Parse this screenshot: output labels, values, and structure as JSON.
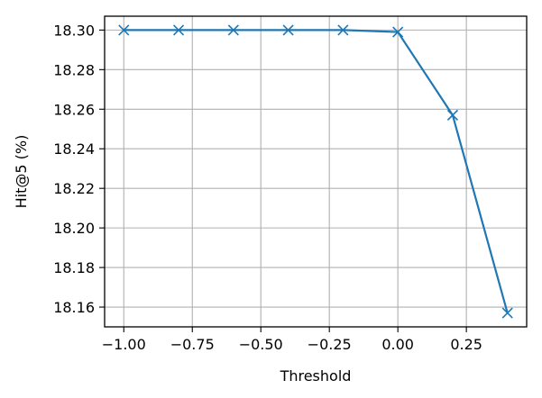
{
  "chart_data": {
    "type": "line",
    "xlabel": "Threshold",
    "ylabel": "Hit@5 (%)",
    "xlim": [
      -1.07,
      0.47
    ],
    "ylim": [
      18.15,
      18.307
    ],
    "xticks": [
      -1.0,
      -0.75,
      -0.5,
      -0.25,
      0.0,
      0.25
    ],
    "xtick_labels": [
      "−1.00",
      "−0.75",
      "−0.50",
      "−0.25",
      "0.00",
      "0.25"
    ],
    "yticks": [
      18.16,
      18.18,
      18.2,
      18.22,
      18.24,
      18.26,
      18.28,
      18.3
    ],
    "ytick_labels": [
      "18.16",
      "18.18",
      "18.20",
      "18.22",
      "18.24",
      "18.26",
      "18.28",
      "18.30"
    ],
    "grid": true,
    "series": [
      {
        "color": "#1f77b4",
        "marker": "x",
        "x": [
          -1.0,
          -0.8,
          -0.6,
          -0.4,
          -0.2,
          0.0,
          0.2,
          0.4
        ],
        "y": [
          18.3,
          18.3,
          18.3,
          18.3,
          18.3,
          18.299,
          18.257,
          18.157
        ]
      }
    ]
  }
}
